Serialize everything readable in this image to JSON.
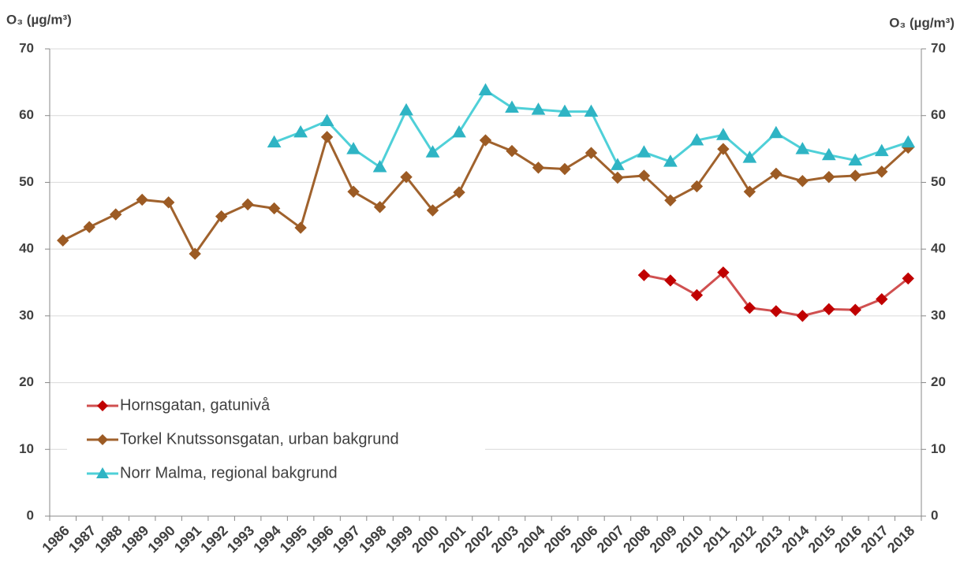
{
  "chart_data": {
    "type": "line",
    "y_label": "O₃ (µg/m³)",
    "y2_label": "O₃ (µg/m³)",
    "categories": [
      "1986",
      "1987",
      "1988",
      "1989",
      "1990",
      "1991",
      "1992",
      "1993",
      "1994",
      "1995",
      "1996",
      "1997",
      "1998",
      "1999",
      "2000",
      "2001",
      "2002",
      "2003",
      "2004",
      "2005",
      "2006",
      "2007",
      "2008",
      "2009",
      "2010",
      "2011",
      "2012",
      "2013",
      "2014",
      "2015",
      "2016",
      "2017",
      "2018"
    ],
    "series": [
      {
        "name": "Hornsgatan, gatunivå",
        "color": "#c00000",
        "line_color": "#d05050",
        "marker": "diamond",
        "values": [
          null,
          null,
          null,
          null,
          null,
          null,
          null,
          null,
          null,
          null,
          null,
          null,
          null,
          null,
          null,
          null,
          null,
          null,
          null,
          null,
          null,
          null,
          36.1,
          35.3,
          33.1,
          36.5,
          31.2,
          30.7,
          30.0,
          31.0,
          30.9,
          32.5,
          35.6
        ]
      },
      {
        "name": "Torkel Knutssonsgatan, urban bakgrund",
        "color": "#9c5b24",
        "line_color": "#a0622d",
        "marker": "diamond",
        "values": [
          41.3,
          43.3,
          45.2,
          47.4,
          47.0,
          39.3,
          44.9,
          46.7,
          46.1,
          43.2,
          56.8,
          48.6,
          46.3,
          50.8,
          45.8,
          48.5,
          56.3,
          54.7,
          52.2,
          52.0,
          54.4,
          50.7,
          51.0,
          47.3,
          49.4,
          55.0,
          48.6,
          51.3,
          50.2,
          50.8,
          51.0,
          51.6,
          55.2
        ]
      },
      {
        "name": "Norr Malma, regional bakgrund",
        "color": "#2fb4c4",
        "line_color": "#4fd0d8",
        "marker": "triangle",
        "values": [
          null,
          null,
          null,
          null,
          null,
          null,
          null,
          null,
          56.0,
          57.5,
          59.2,
          55.0,
          52.3,
          60.8,
          54.5,
          57.5,
          63.8,
          61.2,
          60.9,
          60.6,
          60.6,
          52.6,
          54.5,
          53.1,
          56.3,
          57.1,
          53.7,
          57.4,
          55.0,
          54.1,
          53.3,
          54.7,
          56.0
        ]
      }
    ],
    "ylim": [
      0,
      70
    ],
    "yticks": [
      0,
      10,
      20,
      30,
      40,
      50,
      60,
      70
    ],
    "y2lim": [
      0,
      70
    ],
    "y2ticks": [
      0,
      10,
      20,
      30,
      40,
      50,
      60,
      70
    ],
    "grid": true,
    "legend": "lower left"
  }
}
